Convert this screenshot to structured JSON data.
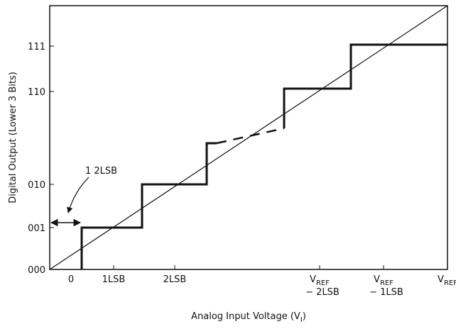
{
  "axes": {
    "y_label": "Digital Output (Lower 3 Bits)",
    "x_label": {
      "text": "Analog Input Voltage (V",
      "sub": "I",
      "end": ")"
    },
    "y_ticks": [
      "000",
      "001",
      "010",
      "110",
      "111"
    ],
    "x_ticks": [
      {
        "text": "0"
      },
      {
        "text": "1LSB"
      },
      {
        "text": "2LSB"
      },
      {
        "text": "V",
        "sub": "REF",
        "line2": "− 2LSB"
      },
      {
        "text": "V",
        "sub": "REF",
        "line2": "− 1LSB"
      },
      {
        "text": "V",
        "sub": "REF"
      }
    ]
  },
  "annotation": "1 2LSB"
}
